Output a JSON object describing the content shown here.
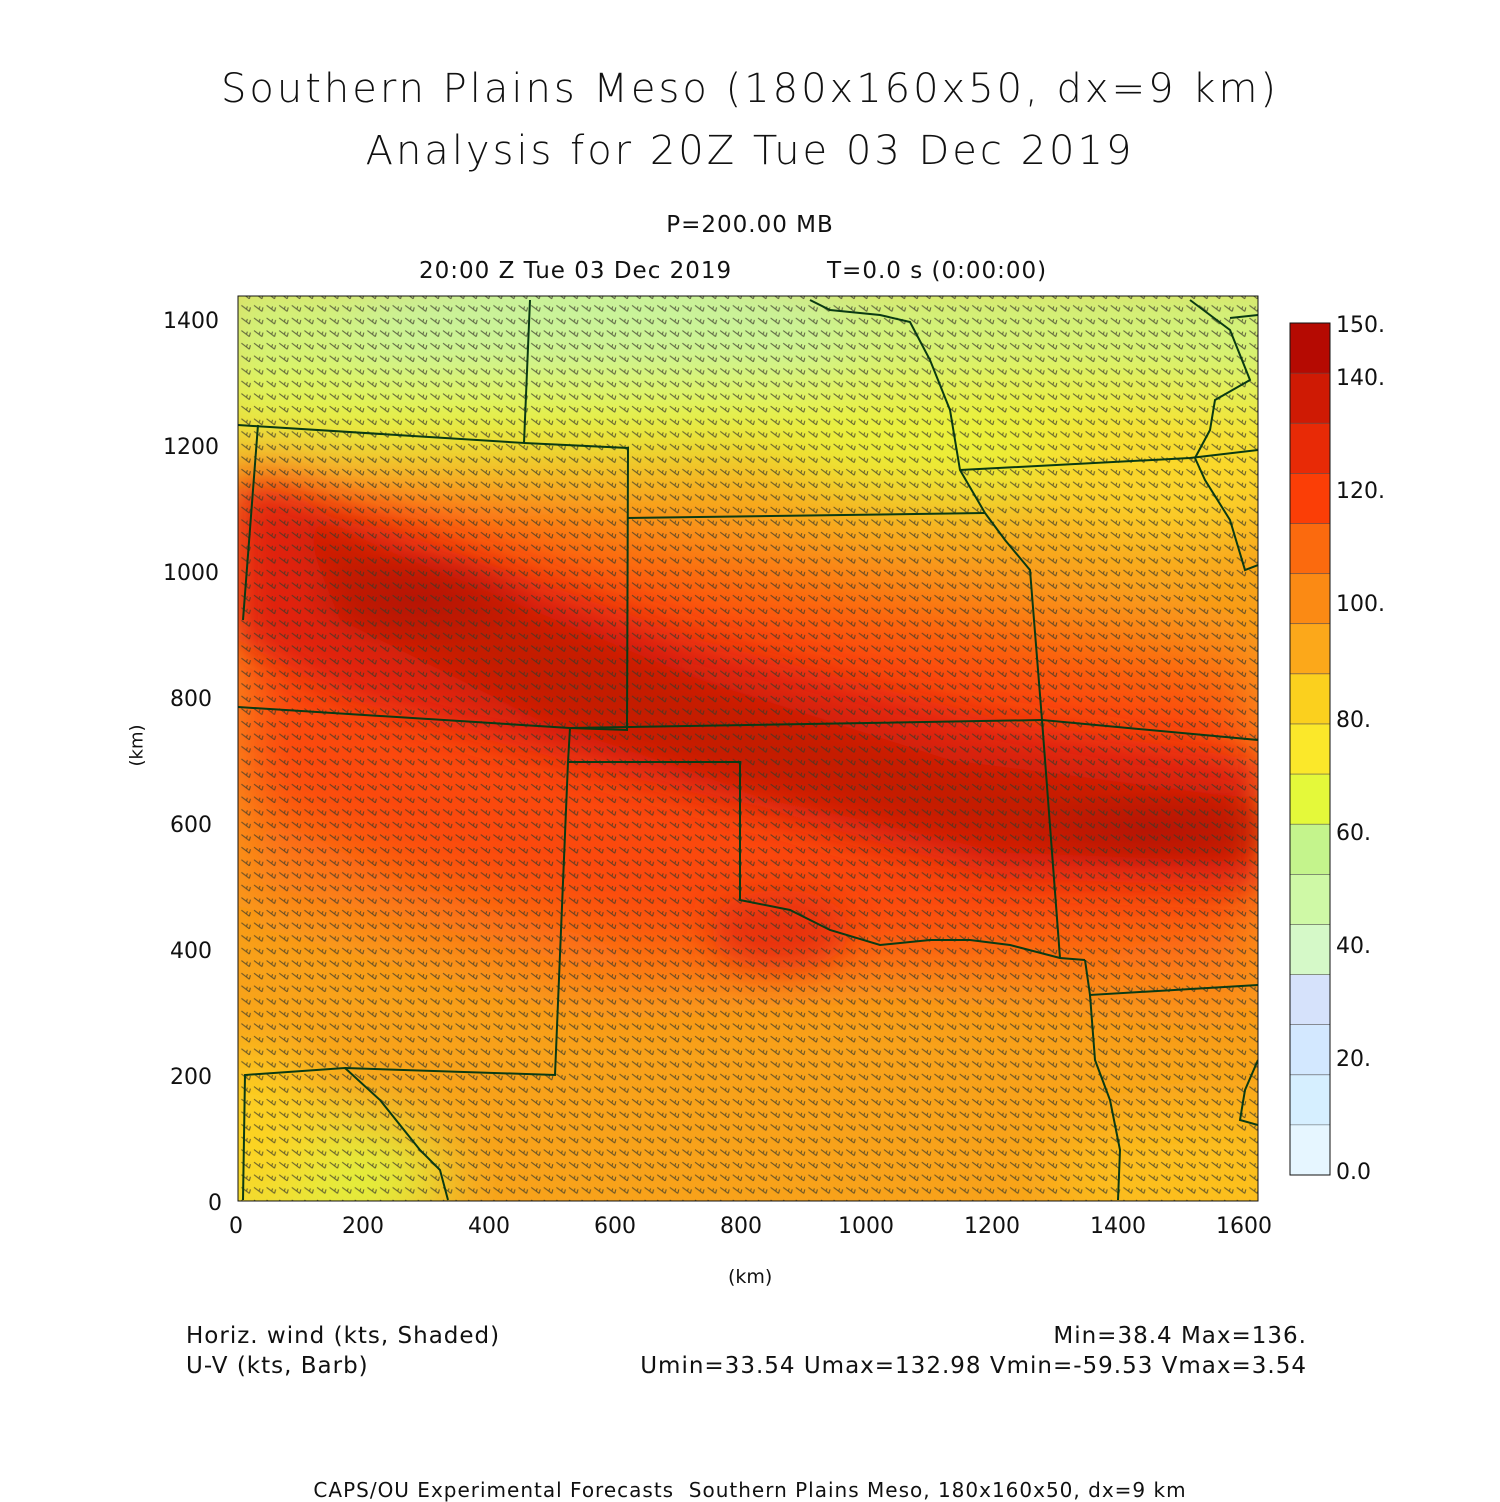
{
  "title": {
    "line1": "Southern Plains Meso (180x160x50, dx=9 km)",
    "line2": "Analysis for 20Z Tue 03 Dec 2019"
  },
  "subtitle": {
    "level": "P=200.00 MB",
    "valid_time": "20:00 Z Tue 03 Dec 2019",
    "forecast_time": "T=0.0 s (0:00:00)"
  },
  "axes": {
    "xlabel": "(km)",
    "ylabel": "(km)",
    "x_ticks": [
      "0",
      "200",
      "400",
      "600",
      "800",
      "1000",
      "1200",
      "1400",
      "1600"
    ],
    "y_ticks": [
      "0",
      "200",
      "400",
      "600",
      "800",
      "1000",
      "1200",
      "1400"
    ],
    "x_range": [
      0,
      1620
    ],
    "y_range": [
      0,
      1440
    ]
  },
  "colorbar": {
    "labels": [
      "0.0",
      "20.",
      "40.",
      "60.",
      "80.",
      "100.",
      "120.",
      "140.",
      "150."
    ],
    "colors": [
      "#e6f6ff",
      "#d6efff",
      "#d3e8ff",
      "#d6e2fb",
      "#d5f9c8",
      "#cff9a6",
      "#c4f48c",
      "#e4f93a",
      "#fbe82a",
      "#fbd01e",
      "#fca81a",
      "#fb8a14",
      "#fb6a0e",
      "#fb3e06",
      "#e82a06",
      "#cf1a04",
      "#b50a02"
    ],
    "min": 0,
    "max": 150
  },
  "legend": {
    "shaded": "Horiz. wind (kts, Shaded)",
    "barb": "U-V (kts, Barb)",
    "minmax": "Min=38.4 Max=136.",
    "uv_stats": "Umin=33.54 Umax=132.98 Vmin=-59.53 Vmax=3.54"
  },
  "footer": "CAPS/OU Experimental Forecasts  Southern Plains Meso, 180x160x50, dx=9 km",
  "colors": {
    "border": "#0a3a14",
    "barb": "#3a3a2a"
  }
}
